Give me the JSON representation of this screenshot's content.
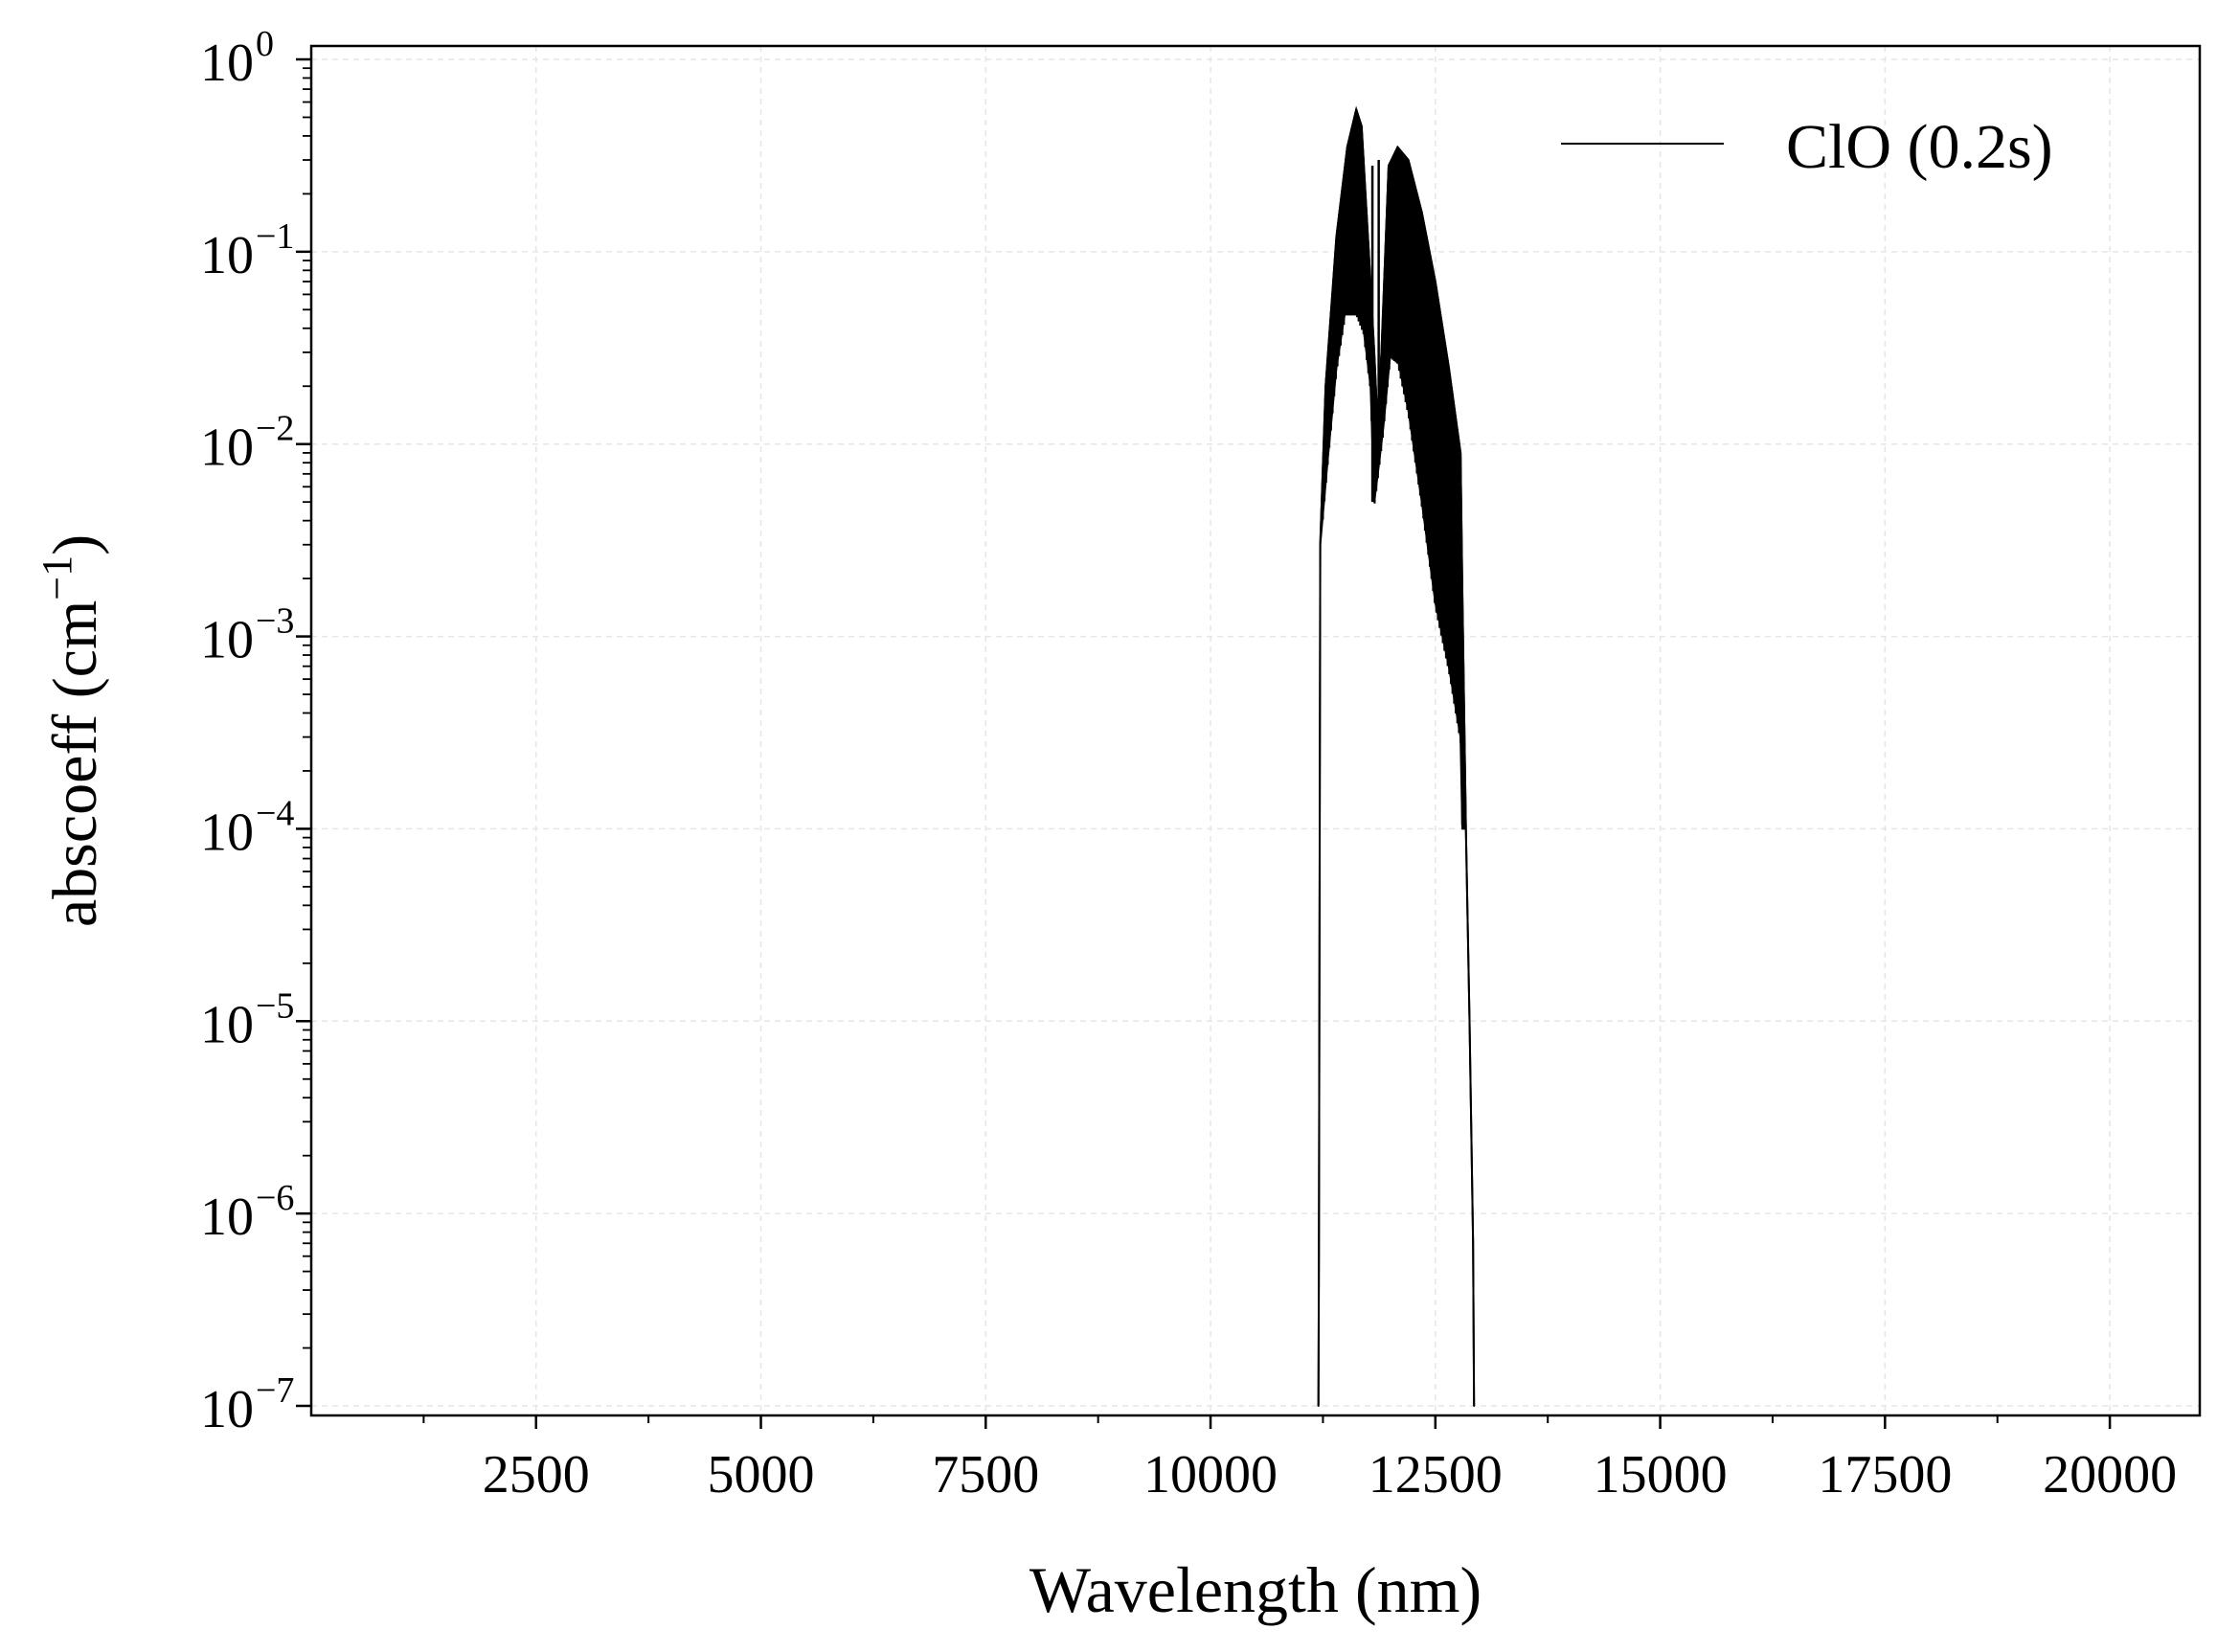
{
  "chart_data": {
    "type": "line",
    "title": "",
    "xlabel": "Wavelength (nm)",
    "ylabel_main": "abscoeff (cm",
    "ylabel_sup": "−1",
    "ylabel_close": ")",
    "xlim": [
      0,
      21000
    ],
    "ylim": [
      1e-07,
      1
    ],
    "yscale": "log",
    "grid": true,
    "legend_position": "top-right",
    "x_ticks": [
      {
        "value": 2500,
        "label": "2500"
      },
      {
        "value": 5000,
        "label": "5000"
      },
      {
        "value": 7500,
        "label": "7500"
      },
      {
        "value": 10000,
        "label": "10000"
      },
      {
        "value": 12500,
        "label": "12500"
      },
      {
        "value": 15000,
        "label": "15000"
      },
      {
        "value": 17500,
        "label": "17500"
      },
      {
        "value": 20000,
        "label": "20000"
      }
    ],
    "y_ticks": [
      {
        "value": 1,
        "base": "10",
        "exp": "0"
      },
      {
        "value": 0.1,
        "base": "10",
        "exp": "−1"
      },
      {
        "value": 0.01,
        "base": "10",
        "exp": "−2"
      },
      {
        "value": 0.001,
        "base": "10",
        "exp": "−3"
      },
      {
        "value": 0.0001,
        "base": "10",
        "exp": "−4"
      },
      {
        "value": 1e-05,
        "base": "10",
        "exp": "−5"
      },
      {
        "value": 1e-06,
        "base": "10",
        "exp": "−6"
      },
      {
        "value": 1e-07,
        "base": "10",
        "exp": "−7"
      }
    ],
    "series": [
      {
        "name": "ClO (0.2s)",
        "color": "#000000",
        "upper_envelope": [
          [
            11200,
            1e-07
          ],
          [
            11205,
            6e-07
          ],
          [
            11220,
            0.003
          ],
          [
            11280,
            0.02
          ],
          [
            11400,
            0.12
          ],
          [
            11520,
            0.35
          ],
          [
            11620,
            0.55
          ],
          [
            11680,
            0.45
          ],
          [
            11760,
            0.1
          ],
          [
            11820,
            0.03
          ],
          [
            11860,
            0.012
          ],
          [
            11900,
            0.03
          ],
          [
            11980,
            0.28
          ],
          [
            12080,
            0.35
          ],
          [
            12200,
            0.3
          ],
          [
            12350,
            0.16
          ],
          [
            12500,
            0.07
          ],
          [
            12650,
            0.025
          ],
          [
            12780,
            0.009
          ],
          [
            12800,
            0.0017
          ],
          [
            12840,
            0.0001
          ],
          [
            12880,
            1e-05
          ],
          [
            12920,
            7e-07
          ],
          [
            12930,
            1e-07
          ]
        ],
        "lower_envelope": [
          [
            11200,
            1e-07
          ],
          [
            11205,
            6e-07
          ],
          [
            11220,
            0.003
          ],
          [
            11300,
            0.008
          ],
          [
            11400,
            0.025
          ],
          [
            11500,
            0.05
          ],
          [
            11620,
            0.05
          ],
          [
            11700,
            0.04
          ],
          [
            11780,
            0.02
          ],
          [
            11820,
            0.005
          ],
          [
            11860,
            0.007
          ],
          [
            11920,
            0.012
          ],
          [
            12000,
            0.03
          ],
          [
            12080,
            0.028
          ],
          [
            12200,
            0.015
          ],
          [
            12350,
            0.005
          ],
          [
            12500,
            0.0015
          ],
          [
            12650,
            0.0007
          ],
          [
            12780,
            0.0003
          ],
          [
            12800,
            0.0001
          ],
          [
            12840,
            0.0001
          ],
          [
            12880,
            1e-05
          ],
          [
            12920,
            7e-07
          ],
          [
            12930,
            1e-07
          ]
        ],
        "spikes": [
          {
            "x": 11800,
            "low": 0.005,
            "high": 0.28
          },
          {
            "x": 11870,
            "low": 0.012,
            "high": 0.3
          }
        ]
      }
    ]
  }
}
